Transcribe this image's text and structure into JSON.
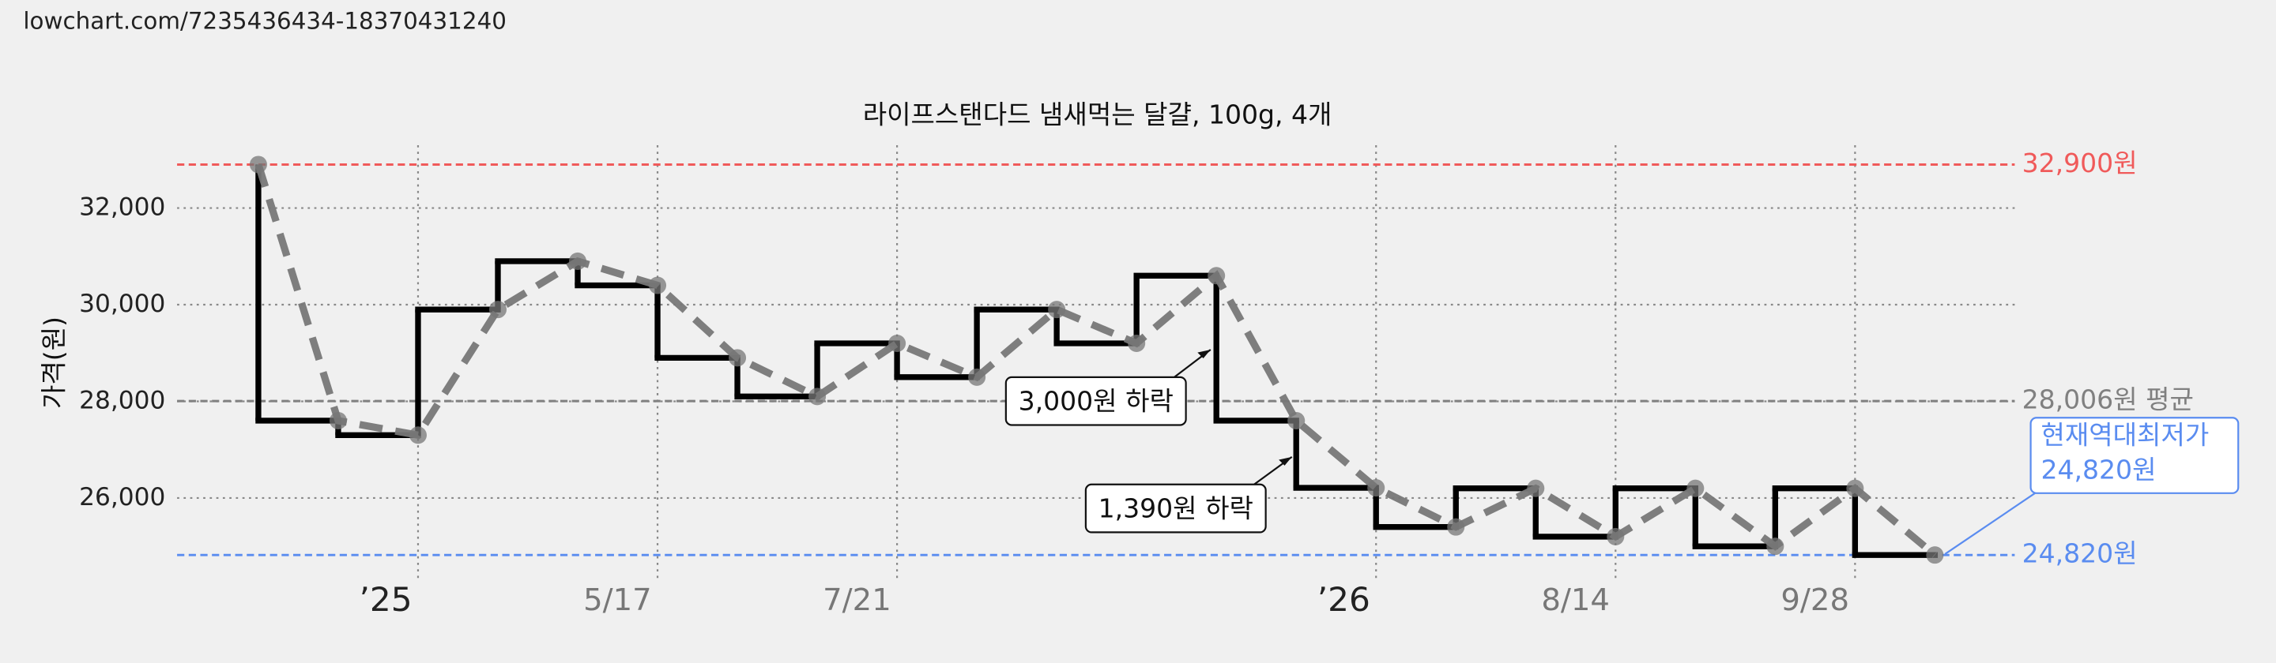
{
  "page_url": "lowchart.com/7235436434-18370431240",
  "chart_data": {
    "type": "line",
    "title": "라이프스탠다드 냄새먹는 달걀, 100g, 4개",
    "y_label": "가격(원)",
    "categories": [
      null,
      null,
      "’25",
      null,
      null,
      "5/17",
      null,
      null,
      "7/21",
      null,
      null,
      null,
      null,
      null,
      "’26",
      null,
      null,
      "8/14",
      null,
      null,
      "9/28",
      null
    ],
    "values": [
      32900,
      27600,
      27300,
      29900,
      30900,
      30400,
      28900,
      28100,
      29200,
      28500,
      29900,
      29200,
      30600,
      27600,
      26210,
      25400,
      26200,
      25200,
      26200,
      25000,
      26200,
      24820
    ],
    "step_color": "#000000",
    "dash_color": "#777777",
    "ylim": [
      24300,
      33300
    ],
    "yticks": [
      {
        "value": 26000,
        "label": "26,000"
      },
      {
        "value": 28000,
        "label": "28,000"
      },
      {
        "value": 30000,
        "label": "30,000"
      },
      {
        "value": 32000,
        "label": "32,000"
      }
    ],
    "grid": true,
    "reference_lines": [
      {
        "value": 32900,
        "label": "32,900원",
        "color": "#f05a5a"
      },
      {
        "value": 28006,
        "label": "28,006원 평균",
        "color": "#808080"
      },
      {
        "value": 24820,
        "label": "24,820원",
        "color": "#5a8cf0"
      }
    ],
    "annotations": [
      "3,000원 하락",
      "1,390원 하락"
    ],
    "current_low": {
      "title": "현재역대최저가",
      "label": "24,820원"
    }
  }
}
